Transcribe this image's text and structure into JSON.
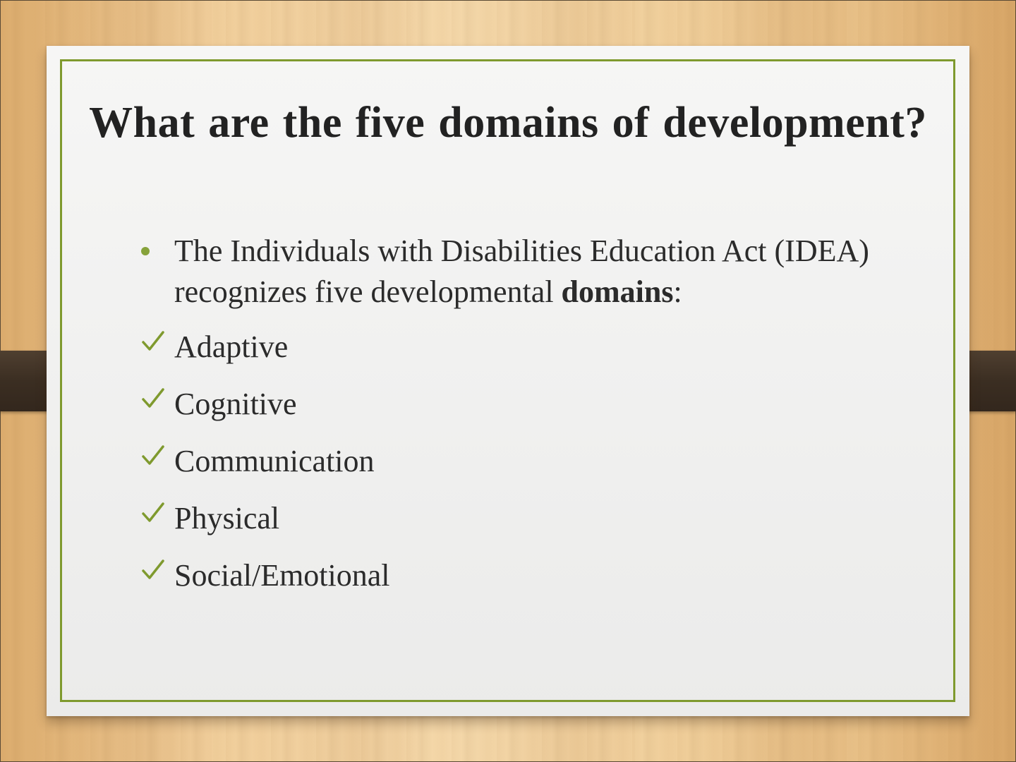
{
  "slide": {
    "title": "What are the five domains of development?",
    "intro": {
      "prefix": "The Individuals with Disabilities Education Act (IDEA) recognizes five developmental ",
      "emphasis": "domains",
      "suffix": ":"
    },
    "domains": [
      "Adaptive",
      "Cognitive",
      "Communication",
      "Physical",
      "Social/Emotional"
    ],
    "icons": {
      "bullet": "bullet-dot-icon",
      "check": "checkmark-icon"
    },
    "colors": {
      "accent": "#7f9a2e",
      "text": "#2b2b2b",
      "title": "#222222",
      "strap": "#3b2e22"
    }
  }
}
